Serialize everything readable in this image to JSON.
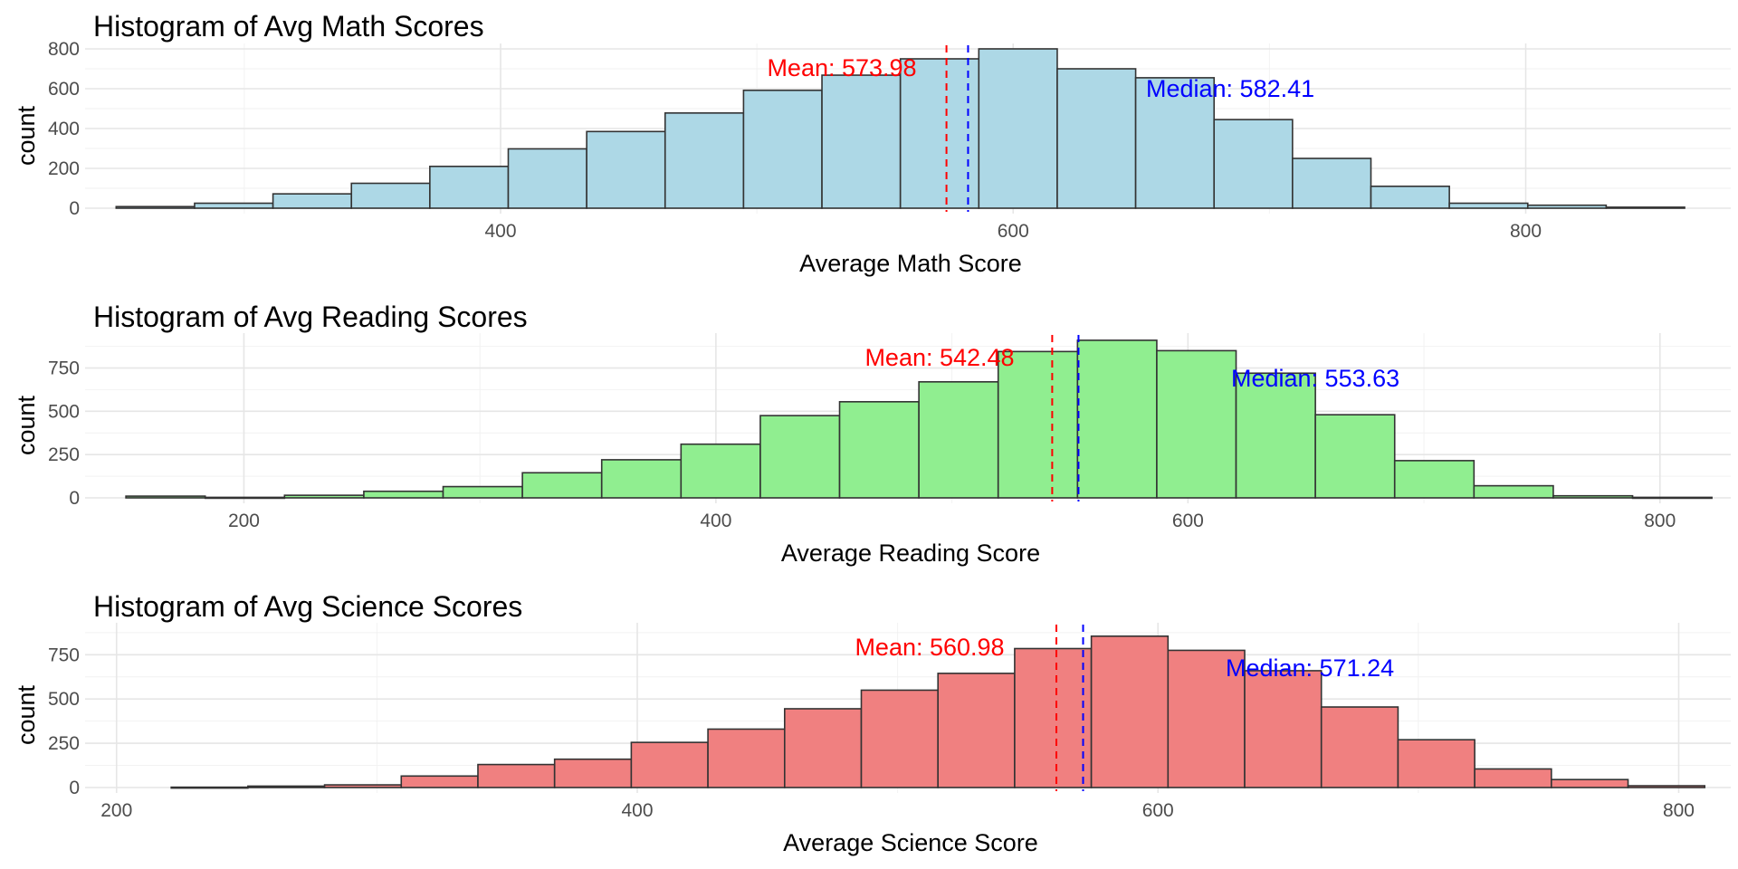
{
  "colors": {
    "mean_line": "#ff0000",
    "median_line": "#0000ff",
    "bar_outline": "#333333"
  },
  "chart_data": [
    {
      "type": "bar",
      "title": "Histogram of Avg Math Scores",
      "xlabel": "Average Math Score",
      "ylabel": "count",
      "fill": "#add8e6",
      "xlim": [
        240,
        880
      ],
      "ylim": [
        0,
        800
      ],
      "x_ticks": [
        400,
        600,
        800
      ],
      "y_ticks": [
        0,
        200,
        400,
        600,
        800
      ],
      "bin_start": 250,
      "bin_width": 30.6,
      "values": [
        8,
        25,
        72,
        125,
        210,
        298,
        385,
        478,
        592,
        668,
        750,
        800,
        700,
        655,
        445,
        250,
        110,
        25,
        15,
        5
      ],
      "mean": 573.98,
      "median": 582.41,
      "mean_label": "Mean: 573.98",
      "median_label": "Median: 582.41",
      "grid": true
    },
    {
      "type": "bar",
      "title": "Histogram of Avg Reading Scores",
      "xlabel": "Average Reading Score",
      "ylabel": "count",
      "fill": "#90ee90",
      "xlim": [
        135,
        830
      ],
      "ylim": [
        0,
        920
      ],
      "x_ticks": [
        200,
        400,
        600,
        800
      ],
      "y_ticks": [
        0,
        250,
        500,
        750
      ],
      "bin_start": 150,
      "bin_width": 33.6,
      "values": [
        10,
        3,
        15,
        38,
        65,
        145,
        220,
        310,
        475,
        555,
        670,
        845,
        910,
        850,
        720,
        480,
        215,
        70,
        12,
        3
      ],
      "mean": 542.48,
      "median": 553.63,
      "mean_label": "Mean: 542.48",
      "median_label": "Median: 553.63",
      "grid": true
    },
    {
      "type": "bar",
      "title": "Histogram of Avg Science Scores",
      "xlabel": "Average Science Score",
      "ylabel": "count",
      "fill": "#f08080",
      "xlim": [
        190,
        820
      ],
      "ylim": [
        0,
        900
      ],
      "x_ticks": [
        200,
        400,
        600,
        800
      ],
      "y_ticks": [
        0,
        250,
        500,
        750
      ],
      "bin_start": 221,
      "bin_width": 29.45,
      "values": [
        2,
        8,
        15,
        65,
        130,
        160,
        255,
        330,
        445,
        550,
        645,
        785,
        855,
        775,
        660,
        455,
        270,
        105,
        45,
        10
      ],
      "mean": 560.98,
      "median": 571.24,
      "mean_label": "Mean: 560.98",
      "median_label": "Median: 571.24",
      "grid": true
    }
  ]
}
